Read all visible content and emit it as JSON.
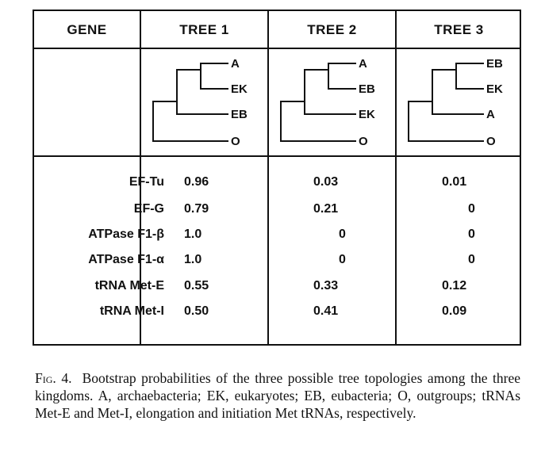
{
  "table": {
    "headers": [
      "GENE",
      "TREE 1",
      "TREE 2",
      "TREE 3"
    ],
    "trees": [
      {
        "top_pair": [
          "A",
          "EK"
        ],
        "third": "EB",
        "outgroup": "O"
      },
      {
        "top_pair": [
          "A",
          "EB"
        ],
        "third": "EK",
        "outgroup": "O"
      },
      {
        "top_pair": [
          "EB",
          "EK"
        ],
        "third": "A",
        "outgroup": "O"
      }
    ],
    "rows": [
      {
        "gene": "EF-Tu",
        "values": [
          "0.96",
          "0.03",
          "0.01"
        ]
      },
      {
        "gene": "EF-G",
        "values": [
          "0.79",
          "0.21",
          "0"
        ]
      },
      {
        "gene": "ATPase F1-β",
        "values": [
          "1.0",
          "0",
          "0"
        ]
      },
      {
        "gene": "ATPase F1-α",
        "values": [
          "1.0",
          "0",
          "0"
        ]
      },
      {
        "gene": "tRNA Met-E",
        "values": [
          "0.55",
          "0.33",
          "0.12"
        ]
      },
      {
        "gene": "tRNA Met-I",
        "values": [
          "0.50",
          "0.41",
          "0.09"
        ]
      }
    ]
  },
  "caption": {
    "label": "Fig. 4.",
    "text": "Bootstrap probabilities of the three possible tree topologies among the three kingdoms. A, archaebacteria; EK, eukaryotes; EB, eubacteria; O, outgroups; tRNAs Met-E and Met-I, elongation and initiation Met tRNAs, respectively."
  }
}
